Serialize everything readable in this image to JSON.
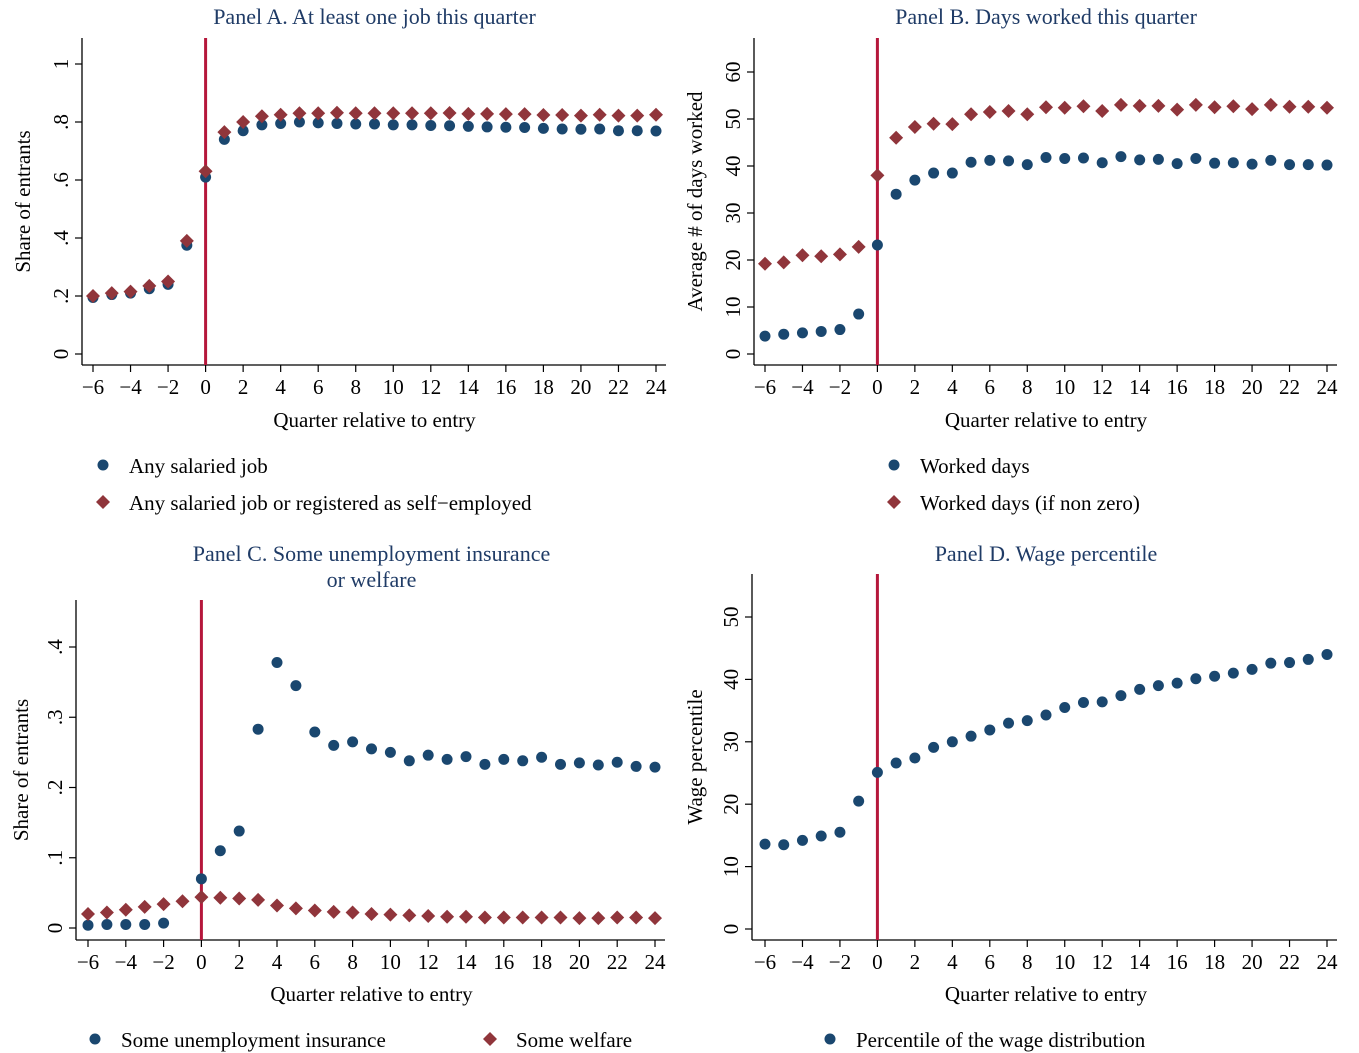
{
  "chart_data": [
    {
      "id": "A",
      "type": "scatter",
      "title": "Panel A. At least one job this quarter",
      "xlabel": "Quarter relative to entry",
      "ylabel": "Share of entrants",
      "xlim": [
        -6,
        24
      ],
      "ylim": [
        0,
        1
      ],
      "xticks": [
        -6,
        -4,
        -2,
        0,
        2,
        4,
        6,
        8,
        10,
        12,
        14,
        16,
        18,
        20,
        22,
        24
      ],
      "xtick_labels": [
        "−6",
        "−4",
        "−2",
        "0",
        "2",
        "4",
        "6",
        "8",
        "10",
        "12",
        "14",
        "16",
        "18",
        "20",
        "22",
        "24"
      ],
      "yticks": [
        0,
        0.2,
        0.4,
        0.6,
        0.8,
        1
      ],
      "ytick_labels": [
        "0",
        ".2",
        ".4",
        ".6",
        ".8",
        "1"
      ],
      "vline": 0,
      "grid": false,
      "legend_position": "bottom, stacked",
      "x": [
        -6,
        -5,
        -4,
        -3,
        -2,
        -1,
        0,
        1,
        2,
        3,
        4,
        5,
        6,
        7,
        8,
        9,
        10,
        11,
        12,
        13,
        14,
        15,
        16,
        17,
        18,
        19,
        20,
        21,
        22,
        23,
        24
      ],
      "series": [
        {
          "name": "Any salaried job",
          "marker": "circle",
          "color": "#1a476f",
          "values": [
            0.195,
            0.205,
            0.21,
            0.225,
            0.24,
            0.375,
            0.61,
            0.74,
            0.77,
            0.79,
            0.795,
            0.8,
            0.797,
            0.795,
            0.793,
            0.793,
            0.79,
            0.79,
            0.788,
            0.787,
            0.785,
            0.783,
            0.782,
            0.781,
            0.778,
            0.776,
            0.775,
            0.776,
            0.77,
            0.77,
            0.769
          ]
        },
        {
          "name": "Any salaried job or registered as self−employed",
          "marker": "diamond",
          "color": "#90353b",
          "values": [
            0.2,
            0.21,
            0.215,
            0.235,
            0.25,
            0.39,
            0.63,
            0.765,
            0.8,
            0.82,
            0.825,
            0.83,
            0.83,
            0.832,
            0.83,
            0.83,
            0.83,
            0.83,
            0.83,
            0.831,
            0.828,
            0.828,
            0.827,
            0.827,
            0.824,
            0.824,
            0.822,
            0.825,
            0.822,
            0.822,
            0.825
          ]
        }
      ]
    },
    {
      "id": "B",
      "type": "scatter",
      "title": "Panel B. Days worked this quarter",
      "xlabel": "Quarter relative to entry",
      "ylabel": "Average # of days worked",
      "xlim": [
        -6,
        24
      ],
      "ylim": [
        0,
        60
      ],
      "xticks": [
        -6,
        -4,
        -2,
        0,
        2,
        4,
        6,
        8,
        10,
        12,
        14,
        16,
        18,
        20,
        22,
        24
      ],
      "xtick_labels": [
        "−6",
        "−4",
        "−2",
        "0",
        "2",
        "4",
        "6",
        "8",
        "10",
        "12",
        "14",
        "16",
        "18",
        "20",
        "22",
        "24"
      ],
      "yticks": [
        0,
        10,
        20,
        30,
        40,
        50,
        60
      ],
      "ytick_labels": [
        "0",
        "10",
        "20",
        "30",
        "40",
        "50",
        "60"
      ],
      "vline": 0,
      "grid": false,
      "legend_position": "bottom, stacked",
      "x": [
        -6,
        -5,
        -4,
        -3,
        -2,
        -1,
        0,
        1,
        2,
        3,
        4,
        5,
        6,
        7,
        8,
        9,
        10,
        11,
        12,
        13,
        14,
        15,
        16,
        17,
        18,
        19,
        20,
        21,
        22,
        23,
        24
      ],
      "series": [
        {
          "name": "Worked days",
          "marker": "circle",
          "color": "#1a476f",
          "values": [
            3.8,
            4.2,
            4.5,
            4.8,
            5.2,
            8.5,
            23.2,
            34,
            37,
            38.5,
            38.5,
            40.8,
            41.2,
            41.1,
            40.3,
            41.8,
            41.6,
            41.7,
            40.7,
            42,
            41.3,
            41.4,
            40.5,
            41.6,
            40.6,
            40.7,
            40.4,
            41.2,
            40.3,
            40.3,
            40.2
          ]
        },
        {
          "name": "Worked days (if non zero)",
          "marker": "diamond",
          "color": "#90353b",
          "values": [
            19.2,
            19.5,
            21,
            20.8,
            21.2,
            22.8,
            38,
            46,
            48.3,
            49,
            48.9,
            51,
            51.5,
            51.7,
            51,
            52.5,
            52.4,
            52.7,
            51.7,
            53,
            52.8,
            52.8,
            52,
            53,
            52.5,
            52.7,
            52.1,
            53,
            52.6,
            52.6,
            52.4
          ]
        }
      ]
    },
    {
      "id": "C",
      "type": "scatter",
      "title": "Panel C. Some unemployment insurance",
      "title_line2": "or welfare",
      "xlabel": "Quarter relative to entry",
      "ylabel": "Share of entrants",
      "xlim": [
        -6,
        24
      ],
      "ylim": [
        0,
        0.4
      ],
      "xticks": [
        -6,
        -4,
        -2,
        0,
        2,
        4,
        6,
        8,
        10,
        12,
        14,
        16,
        18,
        20,
        22,
        24
      ],
      "xtick_labels": [
        "−6",
        "−4",
        "−2",
        "0",
        "2",
        "4",
        "6",
        "8",
        "10",
        "12",
        "14",
        "16",
        "18",
        "20",
        "22",
        "24"
      ],
      "yticks": [
        0,
        0.1,
        0.2,
        0.3,
        0.4
      ],
      "ytick_labels": [
        "0",
        ".1",
        ".2",
        ".3",
        ".4"
      ],
      "vline": 0,
      "grid": false,
      "legend_position": "bottom, one row",
      "x": [
        -6,
        -5,
        -4,
        -3,
        -2,
        -1,
        0,
        1,
        2,
        3,
        4,
        5,
        6,
        7,
        8,
        9,
        10,
        11,
        12,
        13,
        14,
        15,
        16,
        17,
        18,
        19,
        20,
        21,
        22,
        23,
        24
      ],
      "series": [
        {
          "name": "Some unemployment insurance",
          "marker": "circle",
          "color": "#1a476f",
          "values": [
            0.004,
            0.005,
            0.005,
            0.005,
            0.007,
            null,
            0.07,
            0.11,
            0.138,
            0.283,
            0.378,
            0.345,
            0.279,
            0.26,
            0.265,
            0.255,
            0.25,
            0.238,
            0.246,
            0.24,
            0.244,
            0.233,
            0.24,
            0.238,
            0.243,
            0.233,
            0.235,
            0.232,
            0.236,
            0.23,
            0.229
          ]
        },
        {
          "name": "Some welfare",
          "marker": "diamond",
          "color": "#90353b",
          "values": [
            0.02,
            0.022,
            0.026,
            0.03,
            0.034,
            0.038,
            0.044,
            0.043,
            0.042,
            0.04,
            0.032,
            0.028,
            0.025,
            0.023,
            0.022,
            0.02,
            0.019,
            0.018,
            0.017,
            0.016,
            0.016,
            0.015,
            0.015,
            0.015,
            0.015,
            0.015,
            0.014,
            0.014,
            0.015,
            0.015,
            0.014
          ]
        }
      ]
    },
    {
      "id": "D",
      "type": "scatter",
      "title": "Panel D. Wage percentile",
      "xlabel": "Quarter relative to entry",
      "ylabel": "Wage percentile",
      "xlim": [
        -6,
        24
      ],
      "ylim": [
        0,
        50
      ],
      "xticks": [
        -6,
        -4,
        -2,
        0,
        2,
        4,
        6,
        8,
        10,
        12,
        14,
        16,
        18,
        20,
        22,
        24
      ],
      "xtick_labels": [
        "−6",
        "−4",
        "−2",
        "0",
        "2",
        "4",
        "6",
        "8",
        "10",
        "12",
        "14",
        "16",
        "18",
        "20",
        "22",
        "24"
      ],
      "yticks": [
        0,
        10,
        20,
        30,
        40,
        50
      ],
      "ytick_labels": [
        "0",
        "10",
        "20",
        "30",
        "40",
        "50"
      ],
      "vline": 0,
      "grid": false,
      "legend_position": "bottom",
      "x": [
        -6,
        -5,
        -4,
        -3,
        -2,
        -1,
        0,
        1,
        2,
        3,
        4,
        5,
        6,
        7,
        8,
        9,
        10,
        11,
        12,
        13,
        14,
        15,
        16,
        17,
        18,
        19,
        20,
        21,
        22,
        23,
        24
      ],
      "series": [
        {
          "name": "Percentile of the wage distribution",
          "marker": "circle",
          "color": "#1a476f",
          "values": [
            13.6,
            13.5,
            14.2,
            14.9,
            15.5,
            20.5,
            25.1,
            26.6,
            27.4,
            29.1,
            30,
            30.9,
            31.9,
            33,
            33.4,
            34.3,
            35.5,
            36.3,
            36.4,
            37.4,
            38.4,
            39,
            39.4,
            40.1,
            40.5,
            41,
            41.6,
            42.6,
            42.7,
            43.2,
            44
          ]
        }
      ]
    }
  ],
  "colors": {
    "title": "#1f3b66",
    "vline": "#b5173b",
    "series_circle": "#1a476f",
    "series_diamond": "#90353b"
  }
}
